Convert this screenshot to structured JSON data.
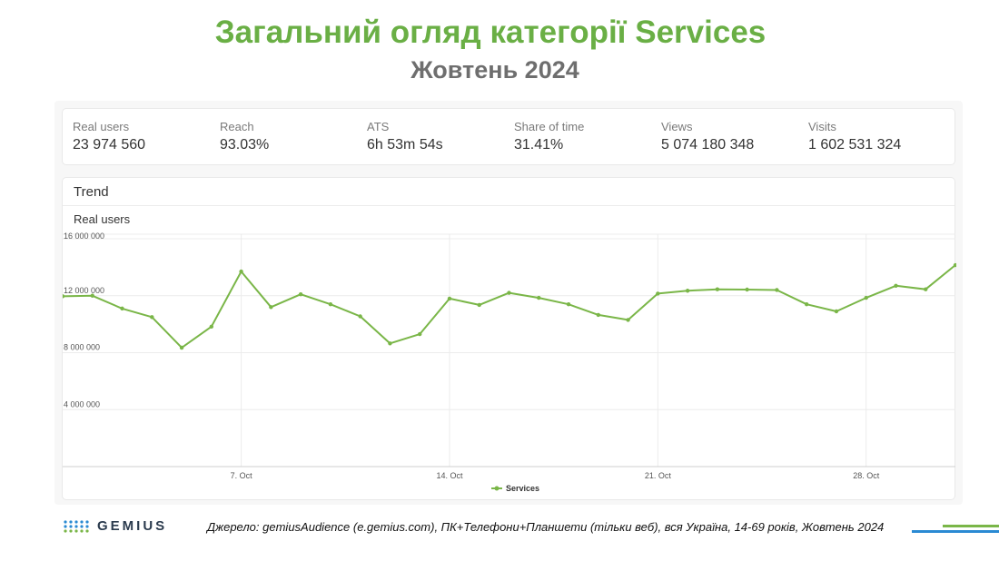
{
  "header": {
    "title": "Загальний огляд категорії Services",
    "subtitle": "Жовтень 2024"
  },
  "kpis": [
    {
      "label": "Real users",
      "value": "23 974 560"
    },
    {
      "label": "Reach",
      "value": "93.03%"
    },
    {
      "label": "ATS",
      "value": "6h 53m 54s"
    },
    {
      "label": "Share of time",
      "value": "31.41%"
    },
    {
      "label": "Views",
      "value": "5 074 180 348"
    },
    {
      "label": "Visits",
      "value": "1 602 531 324"
    }
  ],
  "trend": {
    "title": "Trend",
    "metric": "Real users"
  },
  "chart_data": {
    "type": "line",
    "title": "",
    "xlabel": "",
    "ylabel": "Real users",
    "x": [
      1,
      2,
      3,
      4,
      5,
      6,
      7,
      8,
      9,
      10,
      11,
      12,
      13,
      14,
      15,
      16,
      17,
      18,
      19,
      20,
      21,
      22,
      23,
      24,
      25,
      26,
      27,
      28,
      29,
      30,
      31
    ],
    "xlim": [
      1,
      31
    ],
    "ylim": [
      0,
      16000000
    ],
    "yticks": [
      4000000,
      8000000,
      12000000,
      16000000
    ],
    "ytick_labels": [
      "4 000 000",
      "8 000 000",
      "12 000 000",
      "16 000 000"
    ],
    "xticks": [
      7,
      14,
      21,
      28
    ],
    "xtick_labels": [
      "7. Oct",
      "14. Oct",
      "21. Oct",
      "28. Oct"
    ],
    "grid": true,
    "legend": "bottom-center",
    "series": [
      {
        "name": "Services",
        "color": "#7ab648",
        "values": [
          11960000,
          12000000,
          11100000,
          10500000,
          8350000,
          9830000,
          13700000,
          11200000,
          12100000,
          11400000,
          10550000,
          8650000,
          9300000,
          11800000,
          11350000,
          12200000,
          11850000,
          11400000,
          10650000,
          10300000,
          12150000,
          12350000,
          12450000,
          12430000,
          12400000,
          11400000,
          10900000,
          11850000,
          12700000,
          12450000,
          14150000
        ]
      }
    ]
  },
  "footer": {
    "brand": "GEMIUS",
    "source": "Джерело: gemiusAudience (e.gemius.com), ПК+Телефони+Планшети (тільки веб), вся Україна, 14-69 років, Жовтень 2024"
  },
  "colors": {
    "title_green": "#6aaf45",
    "line_green": "#7ab648",
    "accent_blue": "#2a8ad3",
    "subtitle_gray": "#6e6e6e"
  }
}
